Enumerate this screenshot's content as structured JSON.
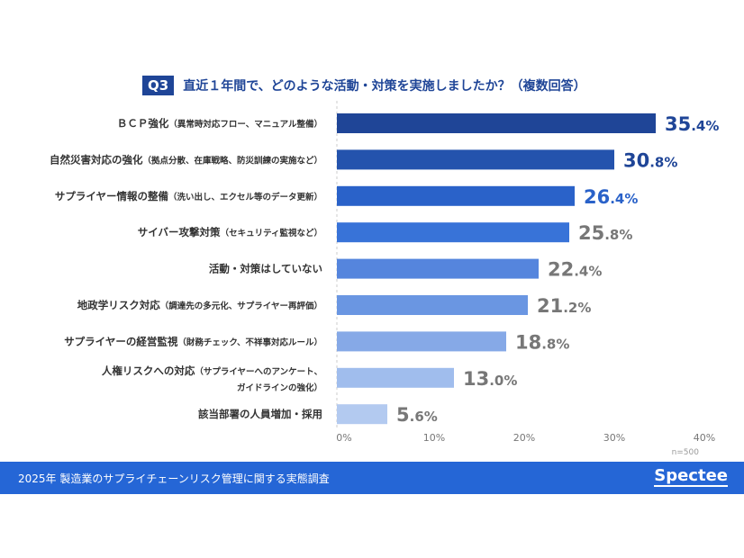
{
  "question_badge": "Q3",
  "question_text": "直近１年間で、どのような活動・対策を実施しましたか？（複数回答）",
  "footer": {
    "title": "2025年 製造業のサプライチェーンリスク管理に関する実態調査",
    "logo": "Spectee"
  },
  "sample_size": "n=500",
  "chart_data": {
    "type": "bar",
    "orientation": "horizontal",
    "categories": [
      [
        "ＢＣＰ強化",
        "（異常時対応フロー、マニュアル整備）"
      ],
      [
        "自然災害対応の強化",
        "（拠点分散、在庫戦略、防災訓練の実施など）"
      ],
      [
        "サプライヤー情報の整備",
        "（洗い出し、エクセル等のデータ更新）"
      ],
      [
        "サイバー攻撃対策",
        "（セキュリティ監視など）"
      ],
      [
        "活動・対策はしていない",
        ""
      ],
      [
        "地政学リスク対応",
        "（調達先の多元化、サプライヤー再評価）"
      ],
      [
        "サプライヤーの経営監視",
        "（財務チェック、不祥事対応ルール）"
      ],
      [
        "人権リスクへの対応",
        "（サプライヤーへのアンケート、",
        "ガイドラインの強化）"
      ],
      [
        "該当部署の人員増加・採用",
        ""
      ]
    ],
    "values": [
      35.4,
      30.8,
      26.4,
      25.8,
      22.4,
      21.2,
      18.8,
      13.0,
      5.6
    ],
    "unit": "%",
    "xlim": [
      0,
      40
    ],
    "xticks": [
      "0%",
      "10%",
      "20%",
      "30%",
      "40%"
    ],
    "bar_colors": [
      "#1f4597",
      "#2453ad",
      "#2a62c9",
      "#3873d8",
      "#5585dd",
      "#6a96e2",
      "#86a9e7",
      "#a0bded",
      "#b3caf0"
    ],
    "label_colors": [
      "#1f4597",
      "#1f4597",
      "#2a62c9",
      "#777777",
      "#777777",
      "#777777",
      "#777777",
      "#777777",
      "#777777"
    ],
    "grid": true
  }
}
